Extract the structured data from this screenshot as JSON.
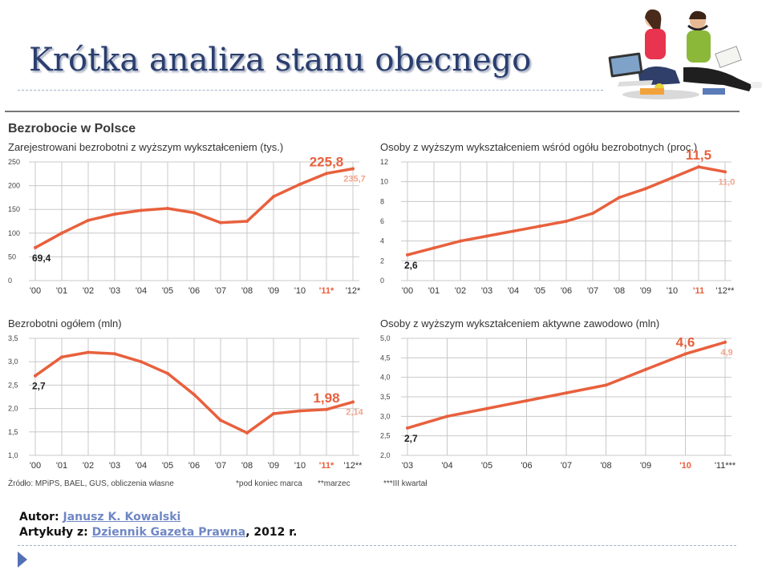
{
  "slide": {
    "title": "Krótka analiza stanu obecnego"
  },
  "infographic": {
    "title": "Bezrobocie w Polsce",
    "footnotes": {
      "source": "Źródło: MPiPS, BAEL, GUS, obliczenia własne",
      "note1": "*pod koniec marca",
      "note2": "**marzec",
      "note3": "***III kwartał"
    }
  },
  "credits": {
    "author_label": "Autor:",
    "author_name": "Janusz K. Kowalski",
    "articles_label": "Artykuły z:",
    "source_name": "Dziennik Gazeta Prawna",
    "source_suffix": ", 2012 r."
  },
  "colors": {
    "line": "#e8603d",
    "highlight_label": "#e8603d",
    "forecast_label": "#f2a68c",
    "grid": "#c8c8c8",
    "title": "#2a3e6e"
  },
  "chart_data": [
    {
      "type": "line",
      "title": "Zarejestrowani bezrobotni z wyższym wykształceniem (tys.)",
      "categories": [
        "'00",
        "'01",
        "'02",
        "'03",
        "'04",
        "'05",
        "'06",
        "'07",
        "'08",
        "'09",
        "'10",
        "'11*",
        "'12*"
      ],
      "highlight_ticks": [
        "'11*"
      ],
      "values": [
        69.4,
        100,
        127,
        140,
        148,
        152,
        143,
        122,
        125,
        177,
        203,
        225.8,
        235.7
      ],
      "ylim": [
        0,
        250
      ],
      "yticks": [
        0,
        50,
        100,
        150,
        200,
        250
      ],
      "labels": [
        {
          "index": 0,
          "text": "69,4",
          "style": "dark",
          "pos": "below"
        },
        {
          "index": 11,
          "text": "225,8",
          "style": "highlight",
          "pos": "above"
        },
        {
          "index": 12,
          "text": "235,7",
          "style": "forecast",
          "pos": "below"
        }
      ],
      "grid": true
    },
    {
      "type": "line",
      "title": "Osoby z wyższym wykształceniem wśród ogółu bezrobotnych (proc.)",
      "categories": [
        "'00",
        "'01",
        "'02",
        "'03",
        "'04",
        "'05",
        "'06",
        "'07",
        "'08",
        "'09",
        "'10",
        "'11",
        "'12**"
      ],
      "highlight_ticks": [
        "'11"
      ],
      "values": [
        2.6,
        3.3,
        4.0,
        4.5,
        5.0,
        5.5,
        6.0,
        6.8,
        8.4,
        9.3,
        10.4,
        11.5,
        11.0
      ],
      "ylim": [
        0,
        12
      ],
      "yticks": [
        0,
        2,
        4,
        6,
        8,
        10,
        12
      ],
      "labels": [
        {
          "index": 0,
          "text": "2,6",
          "style": "dark",
          "pos": "below"
        },
        {
          "index": 11,
          "text": "11,5",
          "style": "highlight",
          "pos": "above"
        },
        {
          "index": 12,
          "text": "11,0",
          "style": "forecast",
          "pos": "below"
        }
      ],
      "grid": true
    },
    {
      "type": "line",
      "title": "Bezrobotni ogółem (mln)",
      "categories": [
        "'00",
        "'01",
        "'02",
        "'03",
        "'04",
        "'05",
        "'06",
        "'07",
        "'08",
        "'09",
        "'10",
        "'11*",
        "'12**"
      ],
      "highlight_ticks": [
        "'11*"
      ],
      "values": [
        2.7,
        3.1,
        3.2,
        3.17,
        3.0,
        2.75,
        2.3,
        1.75,
        1.48,
        1.89,
        1.95,
        1.98,
        2.14
      ],
      "ylim": [
        1.0,
        3.5
      ],
      "yticks": [
        "1,0",
        "1,5",
        "2,0",
        "2,5",
        "3,0",
        "3,5"
      ],
      "labels": [
        {
          "index": 0,
          "text": "2,7",
          "style": "dark",
          "pos": "below"
        },
        {
          "index": 11,
          "text": "1,98",
          "style": "highlight",
          "pos": "above"
        },
        {
          "index": 12,
          "text": "2,14",
          "style": "forecast",
          "pos": "below"
        }
      ],
      "grid": true
    },
    {
      "type": "line",
      "title": "Osoby z wyższym wykształceniem aktywne zawodowo (mln)",
      "categories": [
        "'03",
        "'04",
        "'05",
        "'06",
        "'07",
        "'08",
        "'09",
        "'10",
        "'11***"
      ],
      "highlight_ticks": [
        "'10"
      ],
      "values": [
        2.7,
        3.0,
        3.2,
        3.4,
        3.6,
        3.8,
        4.2,
        4.6,
        4.9
      ],
      "ylim": [
        2.0,
        5.0
      ],
      "yticks": [
        "2,0",
        "2,5",
        "3,0",
        "3,5",
        "4,0",
        "4,5",
        "5,0"
      ],
      "labels": [
        {
          "index": 0,
          "text": "2,7",
          "style": "dark",
          "pos": "below"
        },
        {
          "index": 7,
          "text": "4,6",
          "style": "highlight",
          "pos": "above"
        },
        {
          "index": 8,
          "text": "4,9",
          "style": "forecast",
          "pos": "below"
        }
      ],
      "grid": true
    }
  ]
}
